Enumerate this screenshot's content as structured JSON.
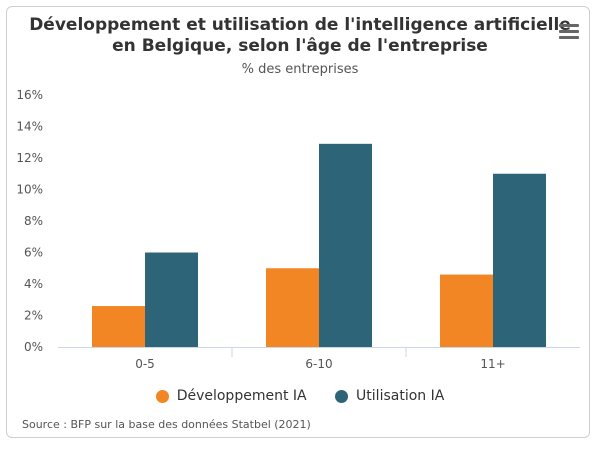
{
  "chart_data": {
    "type": "bar",
    "title_line1": "Développement et utilisation de l'intelligence artificielle",
    "title_line2": "en Belgique, selon l'âge de l'entreprise",
    "subtitle": "% des entreprises",
    "categories": [
      "0-5",
      "6-10",
      "11+"
    ],
    "series": [
      {
        "name": "Développement IA",
        "color": "#f28524",
        "values": [
          2.6,
          5.0,
          4.6
        ]
      },
      {
        "name": "Utilisation IA",
        "color": "#2e6478",
        "values": [
          6.0,
          12.9,
          11.0
        ]
      }
    ],
    "ylim": [
      0,
      16
    ],
    "yticks": [
      "0%",
      "2%",
      "4%",
      "6%",
      "8%",
      "10%",
      "12%",
      "14%",
      "16%"
    ],
    "grid": false,
    "legend_position": "bottom",
    "source": "Source : BFP sur la base des données Statbel (2021)"
  },
  "menu_icon": "hamburger-menu-icon"
}
